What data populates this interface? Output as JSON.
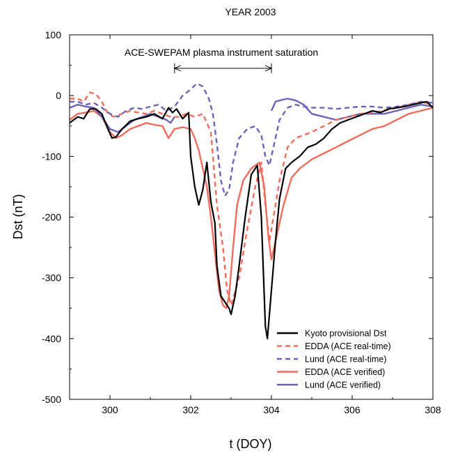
{
  "chart_data": {
    "type": "line",
    "title": "YEAR 2003",
    "xlabel": "t (DOY)",
    "ylabel": "Dst (nT)",
    "xlim": [
      299,
      308
    ],
    "ylim": [
      -500,
      100
    ],
    "xticks": [
      300,
      302,
      304,
      306,
      308
    ],
    "yticks": [
      100,
      0,
      -100,
      -200,
      -300,
      -400,
      -500
    ],
    "grid": false,
    "legend_position": "bottom-right",
    "annotation": {
      "text": "ACE-SWEPAM plasma instrument saturation",
      "x_start": 301.6,
      "x_end": 304.0,
      "y": 45
    },
    "colors": {
      "kyoto": "#000000",
      "edda": "#f26b5b",
      "lund": "#6a64b8"
    },
    "series": [
      {
        "name": "Kyoto provisional Dst",
        "color": "#000000",
        "dash": "solid",
        "x": [
          299.0,
          299.2,
          299.35,
          299.5,
          299.65,
          299.8,
          299.95,
          300.05,
          300.15,
          300.3,
          300.5,
          300.7,
          300.9,
          301.1,
          301.3,
          301.45,
          301.55,
          301.65,
          301.8,
          301.95,
          302.0,
          302.1,
          302.2,
          302.3,
          302.4,
          302.5,
          302.6,
          302.65,
          302.75,
          302.85,
          302.95,
          303.0,
          303.1,
          303.2,
          303.35,
          303.5,
          303.65,
          303.75,
          303.85,
          303.9,
          304.0,
          304.1,
          304.2,
          304.35,
          304.5,
          304.7,
          304.9,
          305.1,
          305.3,
          305.5,
          305.7,
          305.9,
          306.1,
          306.3,
          306.5,
          306.7,
          306.9,
          307.1,
          307.3,
          307.5,
          307.7,
          307.85,
          308.0
        ],
        "y": [
          -45,
          -35,
          -38,
          -22,
          -22,
          -30,
          -55,
          -70,
          -68,
          -55,
          -42,
          -38,
          -35,
          -30,
          -38,
          -20,
          -28,
          -22,
          -38,
          -28,
          -100,
          -150,
          -180,
          -155,
          -110,
          -175,
          -210,
          -280,
          -330,
          -340,
          -350,
          -360,
          -330,
          -280,
          -200,
          -130,
          -115,
          -200,
          -380,
          -400,
          -320,
          -240,
          -170,
          -120,
          -110,
          -100,
          -85,
          -80,
          -70,
          -55,
          -45,
          -40,
          -35,
          -30,
          -25,
          -28,
          -22,
          -20,
          -18,
          -15,
          -12,
          -10,
          -20
        ]
      },
      {
        "name": "EDDA (ACE real-time)",
        "color": "#f26b5b",
        "dash": "dashed",
        "x": [
          299.0,
          299.2,
          299.35,
          299.5,
          299.65,
          299.8,
          299.95,
          300.1,
          300.3,
          300.5,
          300.7,
          300.9,
          301.1,
          301.3,
          301.5,
          301.7,
          301.9,
          302.1,
          302.3,
          302.4,
          302.5,
          302.55,
          302.65,
          302.8,
          302.9,
          303.0,
          303.2,
          303.4,
          303.6,
          303.75,
          303.85,
          303.95,
          304.05,
          304.2,
          304.4,
          304.6,
          304.8,
          305.0,
          305.3,
          305.6,
          305.9,
          306.2,
          306.5,
          306.8,
          307.1,
          307.4,
          307.7,
          308.0
        ],
        "y": [
          -5,
          -5,
          -10,
          5,
          3,
          -10,
          -30,
          -35,
          -30,
          -25,
          -28,
          -30,
          -25,
          -30,
          -35,
          -35,
          -30,
          -35,
          -30,
          -45,
          -60,
          -100,
          -180,
          -250,
          -320,
          -345,
          -300,
          -220,
          -150,
          -110,
          -180,
          -240,
          -200,
          -140,
          -85,
          -70,
          -65,
          -60,
          -50,
          -40,
          -35,
          -30,
          -28,
          -25,
          -20,
          -15,
          -10,
          -15
        ]
      },
      {
        "name": "Lund (ACE real-time)",
        "color": "#6a64b8",
        "dash": "dashed",
        "x": [
          299.0,
          299.2,
          299.4,
          299.6,
          299.8,
          300.0,
          300.2,
          300.4,
          300.6,
          300.8,
          301.0,
          301.2,
          301.4,
          301.6,
          301.8,
          302.0,
          302.15,
          302.3,
          302.45,
          302.55,
          302.65,
          302.75,
          302.85,
          302.95,
          303.05,
          303.2,
          303.4,
          303.6,
          303.75,
          303.85,
          303.95,
          304.05,
          304.2,
          304.4,
          304.6,
          304.8,
          305.0,
          305.3,
          305.6,
          305.9,
          306.2,
          306.5,
          306.8,
          307.1,
          307.4,
          307.7,
          308.0
        ],
        "y": [
          -10,
          -10,
          -15,
          -12,
          -20,
          -30,
          -35,
          -25,
          -20,
          -22,
          -18,
          -15,
          -25,
          -18,
          0,
          10,
          20,
          15,
          -5,
          -30,
          -80,
          -140,
          -165,
          -155,
          -110,
          -70,
          -55,
          -50,
          -65,
          -100,
          -115,
          -85,
          -40,
          -20,
          -15,
          -18,
          -20,
          -20,
          -22,
          -20,
          -18,
          -18,
          -20,
          -18,
          -15,
          -10,
          -12
        ]
      },
      {
        "name": "EDDA (ACE verified)",
        "color": "#f26b5b",
        "dash": "solid",
        "x": [
          299.0,
          299.2,
          299.4,
          299.6,
          299.8,
          300.0,
          300.15,
          300.3,
          300.5,
          300.7,
          300.9,
          301.1,
          301.3,
          301.45,
          301.6,
          301.8,
          302.0,
          302.1,
          302.2,
          302.3,
          302.4,
          302.5,
          302.6,
          302.7,
          302.8,
          302.88,
          302.95,
          303.05,
          303.15,
          303.3,
          303.5,
          303.7,
          303.82,
          303.92,
          304.0,
          304.1,
          304.3,
          304.5,
          304.7,
          305.0,
          305.3,
          305.6,
          305.9,
          306.2,
          306.5,
          306.8,
          307.1,
          307.4,
          307.7,
          308.0
        ],
        "y": [
          -40,
          -30,
          -28,
          -25,
          -35,
          -60,
          -70,
          -65,
          -55,
          -50,
          -45,
          -48,
          -50,
          -70,
          -55,
          -52,
          -55,
          -70,
          -90,
          -120,
          -150,
          -200,
          -260,
          -320,
          -345,
          -350,
          -330,
          -250,
          -180,
          -140,
          -120,
          -110,
          -150,
          -230,
          -270,
          -240,
          -180,
          -135,
          -120,
          -105,
          -95,
          -85,
          -75,
          -65,
          -55,
          -50,
          -40,
          -30,
          -25,
          -20
        ]
      },
      {
        "name": "Lund (ACE verified)",
        "color": "#6a64b8",
        "dash": "solid",
        "x": [
          [
            299.0,
            299.2,
            299.4,
            299.6,
            299.8,
            300.0,
            300.2,
            300.4,
            300.6,
            300.8,
            301.0,
            301.2,
            301.4,
            301.5,
            301.6
          ],
          [
            304.0,
            304.1,
            304.2,
            304.4,
            304.6,
            304.8,
            305.0,
            305.3,
            305.6,
            305.9,
            306.2,
            306.5,
            306.8,
            307.1,
            307.4,
            307.7,
            308.0
          ]
        ],
        "y": [
          [
            -20,
            -15,
            -18,
            -20,
            -35,
            -55,
            -60,
            -50,
            -40,
            -35,
            -30,
            -35,
            -40,
            -45,
            -35
          ],
          [
            -25,
            -10,
            -8,
            -5,
            -8,
            -15,
            -30,
            -35,
            -40,
            -35,
            -30,
            -30,
            -30,
            -25,
            -20,
            -15,
            -18
          ]
        ]
      }
    ]
  }
}
